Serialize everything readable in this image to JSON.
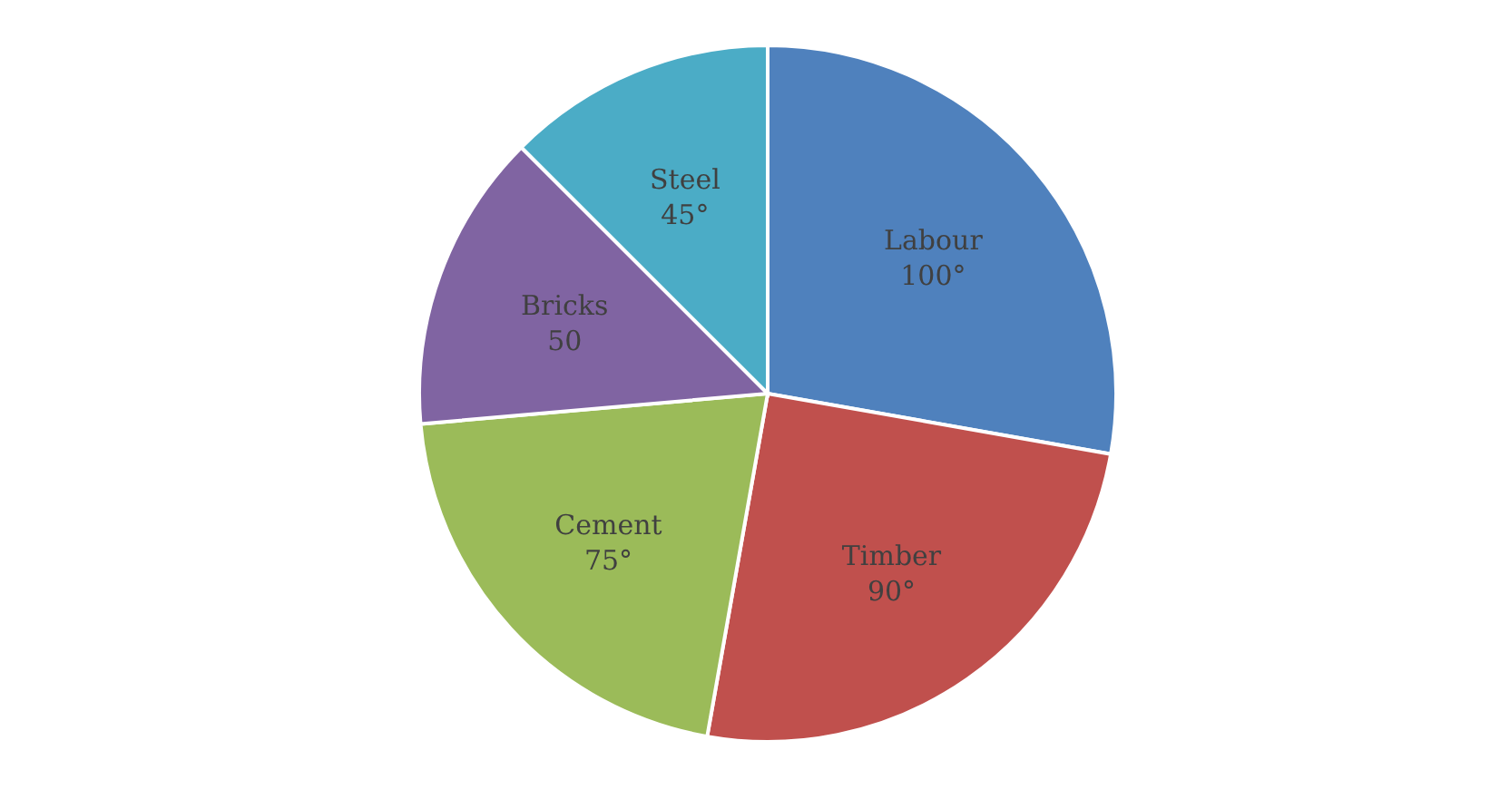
{
  "chart_data": {
    "type": "pie",
    "categories": [
      "Labour",
      "Timber",
      "Cement",
      "Bricks",
      "Steel"
    ],
    "values": [
      100,
      90,
      75,
      50,
      45
    ],
    "value_labels": [
      "100°",
      "90°",
      "75°",
      "50",
      "45°"
    ],
    "colors": [
      "#4f81bd",
      "#c0504d",
      "#9bbb59",
      "#8064a2",
      "#4bacc6"
    ],
    "legend": false
  }
}
